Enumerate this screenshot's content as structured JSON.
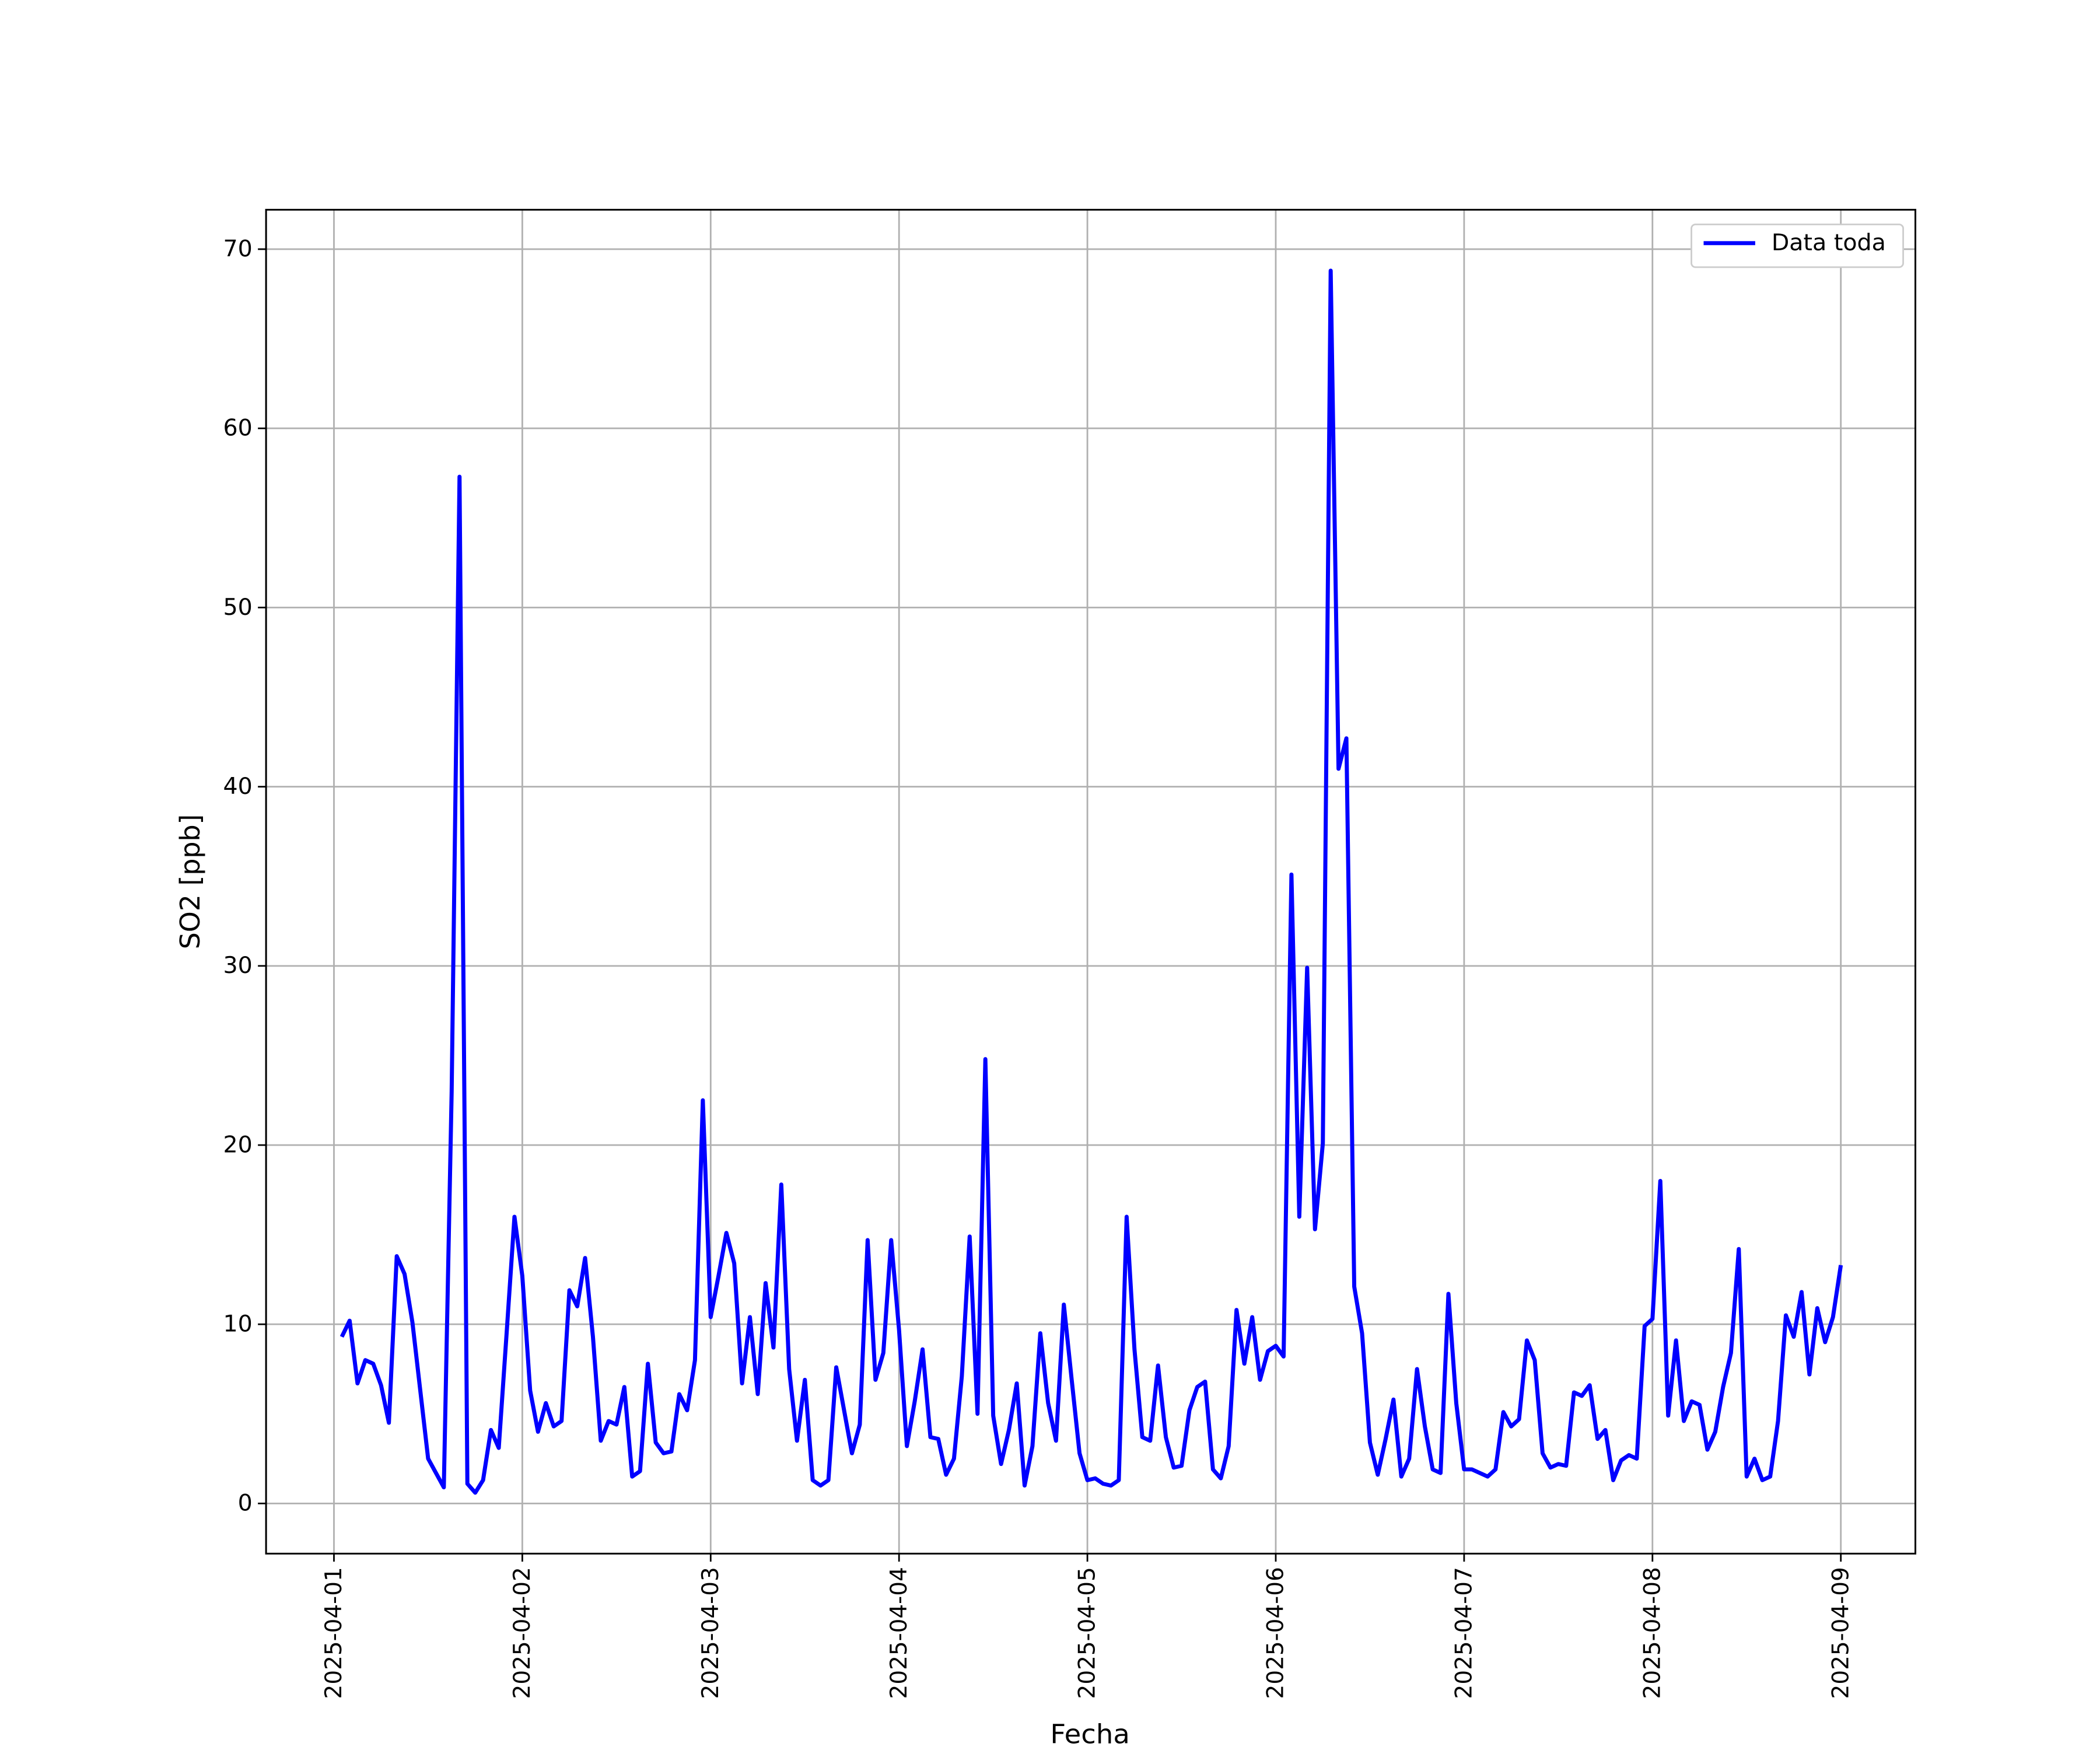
{
  "chart_data": {
    "type": "line",
    "x_label": "Fecha",
    "y_label": "SO2 [ppb]",
    "x": [
      "2025-04-01 01:00",
      "2025-04-01 02:00",
      "2025-04-01 03:00",
      "2025-04-01 04:00",
      "2025-04-01 05:00",
      "2025-04-01 06:00",
      "2025-04-01 07:00",
      "2025-04-01 08:00",
      "2025-04-01 09:00",
      "2025-04-01 10:00",
      "2025-04-01 11:00",
      "2025-04-01 12:00",
      "2025-04-01 13:00",
      "2025-04-01 14:00",
      "2025-04-01 15:00",
      "2025-04-01 16:00",
      "2025-04-01 17:00",
      "2025-04-01 18:00",
      "2025-04-01 19:00",
      "2025-04-01 20:00",
      "2025-04-01 21:00",
      "2025-04-01 22:00",
      "2025-04-01 23:00",
      "2025-04-02 00:00",
      "2025-04-02 01:00",
      "2025-04-02 02:00",
      "2025-04-02 03:00",
      "2025-04-02 04:00",
      "2025-04-02 05:00",
      "2025-04-02 06:00",
      "2025-04-02 07:00",
      "2025-04-02 08:00",
      "2025-04-02 09:00",
      "2025-04-02 10:00",
      "2025-04-02 11:00",
      "2025-04-02 12:00",
      "2025-04-02 13:00",
      "2025-04-02 14:00",
      "2025-04-02 15:00",
      "2025-04-02 16:00",
      "2025-04-02 17:00",
      "2025-04-02 18:00",
      "2025-04-02 19:00",
      "2025-04-02 20:00",
      "2025-04-02 21:00",
      "2025-04-02 22:00",
      "2025-04-02 23:00",
      "2025-04-03 00:00",
      "2025-04-03 01:00",
      "2025-04-03 02:00",
      "2025-04-03 03:00",
      "2025-04-03 04:00",
      "2025-04-03 05:00",
      "2025-04-03 06:00",
      "2025-04-03 07:00",
      "2025-04-03 08:00",
      "2025-04-03 09:00",
      "2025-04-03 10:00",
      "2025-04-03 11:00",
      "2025-04-03 12:00",
      "2025-04-03 13:00",
      "2025-04-03 14:00",
      "2025-04-03 15:00",
      "2025-04-03 16:00",
      "2025-04-03 17:00",
      "2025-04-03 18:00",
      "2025-04-03 19:00",
      "2025-04-03 20:00",
      "2025-04-03 21:00",
      "2025-04-03 22:00",
      "2025-04-03 23:00",
      "2025-04-04 00:00",
      "2025-04-04 01:00",
      "2025-04-04 02:00",
      "2025-04-04 03:00",
      "2025-04-04 04:00",
      "2025-04-04 05:00",
      "2025-04-04 06:00",
      "2025-04-04 07:00",
      "2025-04-04 08:00",
      "2025-04-04 09:00",
      "2025-04-04 10:00",
      "2025-04-04 11:00",
      "2025-04-04 12:00",
      "2025-04-04 13:00",
      "2025-04-04 14:00",
      "2025-04-04 15:00",
      "2025-04-04 16:00",
      "2025-04-04 17:00",
      "2025-04-04 18:00",
      "2025-04-04 19:00",
      "2025-04-04 20:00",
      "2025-04-04 21:00",
      "2025-04-04 22:00",
      "2025-04-04 23:00",
      "2025-04-05 00:00",
      "2025-04-05 01:00",
      "2025-04-05 02:00",
      "2025-04-05 03:00",
      "2025-04-05 04:00",
      "2025-04-05 05:00",
      "2025-04-05 06:00",
      "2025-04-05 07:00",
      "2025-04-05 08:00",
      "2025-04-05 09:00",
      "2025-04-05 10:00",
      "2025-04-05 11:00",
      "2025-04-05 12:00",
      "2025-04-05 13:00",
      "2025-04-05 14:00",
      "2025-04-05 15:00",
      "2025-04-05 16:00",
      "2025-04-05 17:00",
      "2025-04-05 18:00",
      "2025-04-05 19:00",
      "2025-04-05 20:00",
      "2025-04-05 21:00",
      "2025-04-05 22:00",
      "2025-04-05 23:00",
      "2025-04-06 00:00",
      "2025-04-06 01:00",
      "2025-04-06 02:00",
      "2025-04-06 03:00",
      "2025-04-06 04:00",
      "2025-04-06 05:00",
      "2025-04-06 06:00",
      "2025-04-06 07:00",
      "2025-04-06 08:00",
      "2025-04-06 09:00",
      "2025-04-06 10:00",
      "2025-04-06 11:00",
      "2025-04-06 12:00",
      "2025-04-06 13:00",
      "2025-04-06 14:00",
      "2025-04-06 15:00",
      "2025-04-06 16:00",
      "2025-04-06 17:00",
      "2025-04-06 18:00",
      "2025-04-06 19:00",
      "2025-04-06 20:00",
      "2025-04-06 21:00",
      "2025-04-06 22:00",
      "2025-04-06 23:00",
      "2025-04-07 00:00",
      "2025-04-07 01:00",
      "2025-04-07 02:00",
      "2025-04-07 03:00",
      "2025-04-07 04:00",
      "2025-04-07 05:00",
      "2025-04-07 06:00",
      "2025-04-07 07:00",
      "2025-04-07 08:00",
      "2025-04-07 09:00",
      "2025-04-07 10:00",
      "2025-04-07 11:00",
      "2025-04-07 12:00",
      "2025-04-07 13:00",
      "2025-04-07 14:00",
      "2025-04-07 15:00",
      "2025-04-07 16:00",
      "2025-04-07 17:00",
      "2025-04-07 18:00",
      "2025-04-07 19:00",
      "2025-04-07 20:00",
      "2025-04-07 21:00",
      "2025-04-07 22:00",
      "2025-04-07 23:00",
      "2025-04-08 00:00",
      "2025-04-08 01:00",
      "2025-04-08 02:00",
      "2025-04-08 03:00",
      "2025-04-08 04:00",
      "2025-04-08 05:00",
      "2025-04-08 06:00",
      "2025-04-08 07:00",
      "2025-04-08 08:00",
      "2025-04-08 09:00",
      "2025-04-08 10:00",
      "2025-04-08 11:00",
      "2025-04-08 12:00",
      "2025-04-08 13:00",
      "2025-04-08 14:00",
      "2025-04-08 15:00",
      "2025-04-08 16:00",
      "2025-04-08 17:00",
      "2025-04-08 18:00",
      "2025-04-08 19:00",
      "2025-04-08 20:00",
      "2025-04-08 21:00",
      "2025-04-08 22:00",
      "2025-04-08 23:00",
      "2025-04-09 00:00"
    ],
    "series": [
      {
        "name": "Data toda",
        "color": "#0000ff",
        "values": [
          9.3,
          10.2,
          6.7,
          8.0,
          7.8,
          6.6,
          4.5,
          13.8,
          12.8,
          10.1,
          6.3,
          2.5,
          1.7,
          0.9,
          23,
          57.3,
          1.1,
          0.6,
          1.3,
          4.1,
          3.1,
          9.5,
          16.0,
          12.7,
          6.3,
          4.0,
          5.6,
          4.3,
          4.6,
          11.9,
          11.0,
          13.7,
          9.3,
          3.5,
          4.6,
          4.4,
          6.5,
          1.5,
          1.8,
          7.8,
          3.4,
          2.8,
          2.9,
          6.1,
          5.2,
          8.0,
          22.5,
          10.4,
          12.7,
          15.1,
          13.4,
          6.7,
          10.4,
          6.1,
          12.3,
          8.7,
          17.8,
          7.5,
          3.5,
          6.9,
          1.3,
          1.0,
          1.3,
          7.6,
          5.2,
          2.8,
          4.4,
          14.7,
          6.9,
          8.4,
          14.7,
          9.7,
          3.2,
          5.7,
          8.6,
          3.7,
          3.6,
          1.6,
          2.5,
          7.1,
          14.9,
          5.0,
          24.8,
          4.9,
          2.2,
          4.1,
          6.7,
          1.0,
          3.2,
          9.5,
          5.6,
          3.5,
          11.1,
          6.9,
          2.8,
          1.3,
          1.4,
          1.1,
          1.0,
          1.3,
          16.0,
          8.6,
          3.7,
          3.5,
          7.7,
          3.7,
          2.0,
          2.1,
          5.2,
          6.5,
          6.8,
          1.9,
          1.4,
          3.2,
          10.8,
          7.8,
          10.4,
          6.9,
          8.5,
          8.8,
          8.2,
          35.1,
          16.0,
          29.9,
          15.3,
          20.1,
          68.8,
          41.0,
          42.7,
          12.1,
          9.5,
          3.4,
          1.6,
          3.6,
          5.8,
          1.5,
          2.5,
          7.5,
          4.3,
          1.9,
          1.7,
          11.7,
          5.6,
          1.9,
          1.9,
          1.7,
          1.5,
          1.9,
          5.1,
          4.3,
          4.7,
          9.1,
          8.0,
          2.8,
          2.0,
          2.2,
          2.1,
          6.2,
          6.0,
          6.6,
          3.6,
          4.1,
          1.3,
          2.4,
          2.7,
          2.5,
          9.9,
          10.3,
          18.0,
          4.9,
          9.1,
          4.6,
          5.7,
          5.5,
          3.0,
          4.0,
          6.5,
          8.4,
          14.2,
          1.5,
          2.5,
          1.3,
          1.5,
          4.6,
          10.5,
          9.3,
          11.8,
          7.2,
          10.9,
          9.0,
          10.4,
          13.3
        ]
      }
    ],
    "xlim": [
      "2025-03-31 15:21",
      "2025-04-09 09:30"
    ],
    "xticks": [
      "2025-04-01",
      "2025-04-02",
      "2025-04-03",
      "2025-04-04",
      "2025-04-05",
      "2025-04-06",
      "2025-04-07",
      "2025-04-08",
      "2025-04-09"
    ],
    "ylim": [
      -2.8,
      72.2
    ],
    "yticks": [
      0,
      10,
      20,
      30,
      40,
      50,
      60,
      70
    ],
    "grid": true,
    "legend": "upper right"
  }
}
